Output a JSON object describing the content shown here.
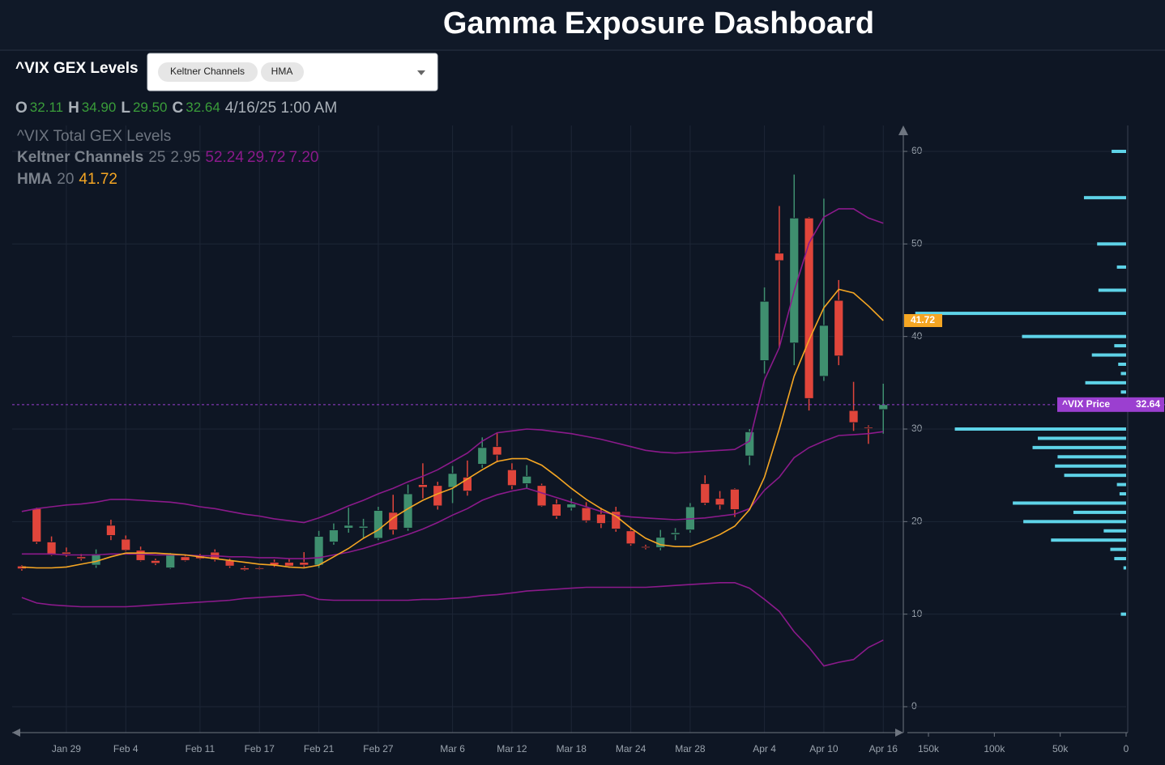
{
  "header": {
    "title": "Gamma Exposure Dashboard"
  },
  "panel": {
    "label": "^VIX GEX Levels",
    "chips": [
      "Keltner Channels",
      "HMA"
    ]
  },
  "chart_data": [
    {
      "type": "candlestick",
      "title": "^VIX Total GEX Levels",
      "categories": [
        null,
        null,
        null,
        "Jan 29",
        null,
        null,
        null,
        "Feb 4",
        null,
        null,
        null,
        null,
        "Feb 11",
        null,
        null,
        null,
        "Feb 17",
        null,
        null,
        null,
        "Feb 21",
        null,
        null,
        null,
        "Feb 27",
        null,
        null,
        null,
        null,
        "Mar 6",
        null,
        null,
        null,
        "Mar 12",
        null,
        null,
        null,
        "Mar 18",
        null,
        null,
        null,
        "Mar 24",
        null,
        null,
        null,
        "Mar 28",
        null,
        null,
        null,
        null,
        "Apr 4",
        null,
        null,
        null,
        "Apr 10",
        null,
        null,
        null,
        "Apr 16"
      ],
      "open": [
        15.2,
        21.4,
        17.8,
        16.7,
        16.2,
        15.3,
        19.6,
        18.1,
        16.9,
        15.8,
        15.0,
        16.2,
        16.3,
        16.7,
        15.8,
        15.0,
        15.0,
        15.6,
        15.6,
        15.6,
        15.3,
        17.8,
        19.3,
        19.3,
        18.2,
        21.0,
        19.3,
        24.0,
        23.9,
        23.7,
        24.8,
        26.2,
        28.1,
        25.6,
        24.1,
        23.9,
        21.9,
        21.5,
        21.5,
        20.8,
        21.1,
        19.0,
        17.3,
        17.2,
        18.6,
        19.1,
        24.1,
        22.5,
        23.5,
        27.1,
        37.4,
        49.0,
        39.3,
        52.8,
        35.7,
        43.9,
        32.0,
        30.2,
        32.11
      ],
      "high": [
        15.3,
        21.5,
        18.4,
        17.2,
        16.5,
        17.0,
        20.2,
        18.5,
        17.3,
        16.0,
        16.6,
        16.4,
        16.5,
        17.0,
        16.0,
        15.2,
        15.1,
        15.9,
        16.0,
        16.7,
        19.0,
        19.8,
        21.5,
        20.3,
        21.6,
        22.9,
        24.0,
        26.3,
        24.3,
        26.0,
        26.6,
        29.1,
        29.6,
        26.3,
        26.1,
        24.1,
        22.4,
        22.5,
        22.1,
        21.5,
        21.6,
        19.4,
        17.5,
        19.1,
        19.3,
        22.0,
        25.0,
        23.3,
        23.6,
        30.0,
        45.3,
        54.1,
        57.5,
        52.9,
        54.9,
        46.1,
        35.1,
        30.4,
        34.9
      ],
      "low": [
        14.7,
        17.6,
        16.3,
        16.2,
        15.8,
        15.0,
        18.0,
        16.8,
        15.7,
        15.3,
        14.9,
        15.7,
        15.9,
        15.7,
        15.0,
        14.7,
        14.8,
        15.1,
        15.0,
        15.1,
        15.0,
        17.5,
        18.8,
        18.2,
        18.0,
        18.6,
        19.0,
        22.5,
        21.3,
        22.0,
        22.8,
        25.8,
        26.4,
        23.5,
        23.6,
        21.6,
        20.3,
        21.2,
        19.9,
        19.3,
        18.9,
        17.4,
        17.0,
        16.9,
        18.0,
        18.8,
        21.8,
        21.3,
        20.5,
        26.1,
        36.0,
        38.8,
        36.9,
        32.0,
        35.2,
        36.9,
        29.8,
        28.4,
        29.5
      ],
      "close": [
        14.9,
        17.8,
        16.4,
        16.5,
        16.0,
        16.5,
        18.5,
        16.9,
        15.8,
        15.5,
        16.4,
        15.8,
        16.0,
        15.9,
        15.2,
        14.8,
        14.9,
        15.3,
        15.2,
        15.3,
        18.4,
        19.1,
        19.6,
        19.5,
        21.2,
        19.1,
        23.0,
        23.7,
        21.7,
        25.2,
        23.3,
        28.0,
        27.2,
        23.9,
        24.9,
        21.7,
        20.6,
        21.9,
        20.1,
        19.8,
        19.2,
        17.6,
        17.2,
        18.3,
        18.8,
        21.6,
        22.0,
        21.8,
        21.3,
        29.7,
        43.8,
        48.2,
        52.8,
        33.3,
        41.2,
        37.9,
        30.7,
        30.1,
        32.64
      ],
      "up_color": "#3f8f6f",
      "down_color": "#e0453b",
      "last_bar": {
        "labels": [
          "O",
          "H",
          "L",
          "C"
        ],
        "value_labels": [
          "32.11",
          "34.90",
          "29.50",
          "32.64"
        ],
        "date": "4/16/25 1:00 AM"
      },
      "price_label": "^VIX Price",
      "price_color": "#9b3fd0",
      "indicators": [
        {
          "name": "Keltner Channels",
          "params": [
            25,
            2.95
          ],
          "color": "#8b1a8b",
          "value_labels": [
            "52.24",
            "29.72",
            "7.20"
          ],
          "series": [
            {
              "values": [
                21.1,
                21.4,
                21.6,
                21.8,
                21.9,
                22.1,
                22.4,
                22.4,
                22.3,
                22.2,
                22.1,
                21.9,
                21.6,
                21.4,
                21.1,
                20.8,
                20.6,
                20.3,
                20.1,
                19.9,
                20.4,
                21.0,
                21.7,
                22.3,
                23.0,
                23.6,
                24.3,
                24.9,
                25.6,
                26.5,
                27.4,
                28.7,
                29.6,
                29.8,
                30.0,
                29.9,
                29.7,
                29.5,
                29.2,
                28.9,
                28.5,
                28.1,
                27.7,
                27.5,
                27.4,
                27.5,
                27.6,
                27.7,
                27.8,
                28.7,
                35.3,
                38.8,
                44.9,
                50.1,
                52.9,
                53.8,
                53.8,
                52.8,
                52.24
              ]
            },
            {
              "values": [
                16.5,
                16.5,
                16.5,
                16.4,
                16.4,
                16.4,
                16.5,
                16.5,
                16.5,
                16.4,
                16.4,
                16.4,
                16.3,
                16.3,
                16.2,
                16.2,
                16.1,
                16.1,
                16.0,
                16.0,
                16.1,
                16.4,
                16.7,
                17.1,
                17.6,
                18.1,
                18.6,
                19.2,
                19.9,
                20.7,
                21.4,
                22.3,
                22.9,
                23.3,
                23.6,
                23.1,
                22.6,
                22.1,
                21.6,
                21.1,
                20.7,
                20.5,
                20.4,
                20.3,
                20.2,
                20.3,
                20.4,
                20.6,
                20.8,
                21.4,
                23.4,
                24.8,
                26.9,
                28.0,
                28.7,
                29.3,
                29.4,
                29.5,
                29.72
              ]
            },
            {
              "values": [
                11.8,
                11.2,
                11.0,
                10.9,
                10.8,
                10.8,
                10.8,
                10.8,
                10.9,
                11.0,
                11.1,
                11.2,
                11.3,
                11.4,
                11.5,
                11.7,
                11.8,
                11.9,
                12.0,
                12.1,
                11.6,
                11.5,
                11.5,
                11.5,
                11.5,
                11.5,
                11.5,
                11.6,
                11.6,
                11.7,
                11.8,
                12.0,
                12.1,
                12.3,
                12.5,
                12.6,
                12.7,
                12.8,
                12.9,
                12.9,
                12.9,
                12.9,
                12.9,
                13.0,
                13.1,
                13.2,
                13.3,
                13.4,
                13.4,
                12.8,
                11.6,
                10.3,
                8.1,
                6.4,
                4.4,
                4.8,
                5.1,
                6.4,
                7.2
              ]
            }
          ]
        },
        {
          "name": "HMA",
          "params": [
            20
          ],
          "color": "#f5a623",
          "value_labels": [
            "41.72"
          ],
          "series": [
            {
              "values": [
                15.1,
                15.0,
                15.0,
                15.1,
                15.4,
                15.7,
                16.2,
                16.6,
                16.6,
                16.6,
                16.5,
                16.4,
                16.2,
                16.0,
                15.8,
                15.6,
                15.4,
                15.3,
                15.1,
                15.0,
                15.3,
                16.2,
                17.1,
                18.2,
                19.1,
                20.4,
                21.4,
                22.3,
                23.0,
                23.6,
                24.6,
                25.6,
                26.5,
                26.8,
                26.8,
                26.1,
                24.9,
                23.6,
                22.4,
                21.4,
                20.6,
                19.3,
                18.2,
                17.5,
                17.3,
                17.3,
                17.9,
                18.6,
                19.5,
                21.3,
                24.8,
                30.0,
                35.7,
                39.6,
                43.1,
                45.1,
                44.7,
                43.3,
                41.72
              ]
            }
          ]
        }
      ],
      "ylim": [
        -2.8,
        62.8
      ],
      "yticks": [
        0,
        10,
        20,
        30,
        40,
        50,
        60
      ],
      "grid": true
    },
    {
      "type": "bar",
      "orientation": "horizontal",
      "color": "#5ed3e8",
      "strikes": [
        60,
        55,
        50,
        47.5,
        45,
        42.5,
        40,
        39,
        38,
        37,
        36,
        35,
        34,
        30,
        29,
        28,
        27,
        26,
        25,
        24,
        23,
        22,
        21,
        20,
        19,
        18,
        17,
        16,
        15,
        10
      ],
      "values": [
        11000,
        32000,
        22000,
        7000,
        21000,
        160000,
        79000,
        9000,
        26000,
        6000,
        4000,
        31000,
        4000,
        130000,
        67000,
        71000,
        52000,
        54000,
        47000,
        7000,
        5000,
        86000,
        40000,
        78000,
        17000,
        57000,
        12000,
        9000,
        2000,
        4000
      ],
      "xlim": [
        166000,
        0
      ],
      "xticks": [
        {
          "value": 150000,
          "label": "150k"
        },
        {
          "value": 100000,
          "label": "100k"
        },
        {
          "value": 50000,
          "label": "50k"
        },
        0
      ]
    }
  ]
}
